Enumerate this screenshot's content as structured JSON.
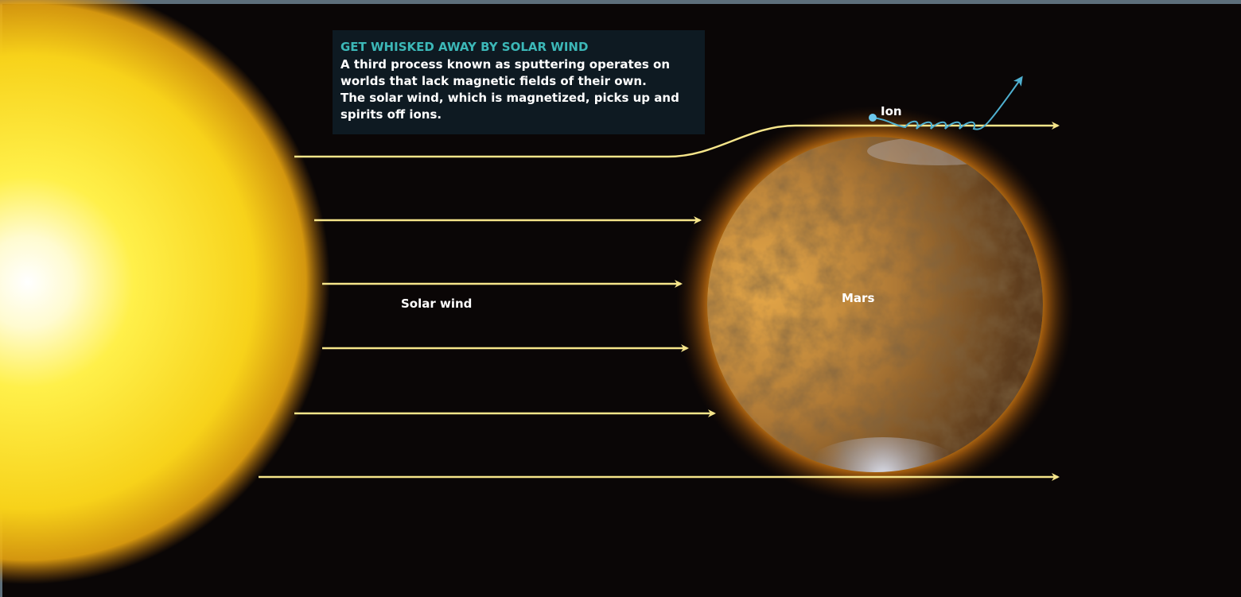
{
  "caption": {
    "title": "GET WHISKED AWAY BY SOLAR WIND",
    "body": [
      "A third process known as sputtering operates on",
      "worlds that lack magnetic fields of their own.",
      "The solar wind, which is magnetized, picks up and",
      "spirits off ions."
    ]
  },
  "labels": {
    "ion": "Ion",
    "solar_wind": "Solar wind",
    "mars": "Mars"
  }
}
